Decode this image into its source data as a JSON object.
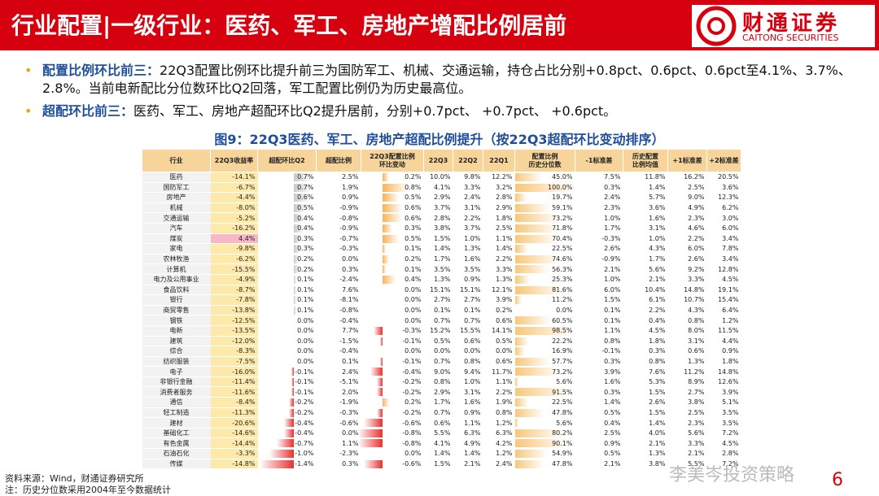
{
  "header": {
    "title": "行业配置|一级行业：医药、军工、房地产增配比例居前",
    "logo_cn": "财通证券",
    "logo_en": "CAITONG SECURITIES"
  },
  "bullets": [
    {
      "label": "配置比例环比前三：",
      "text": "22Q3配置比例环比提升前三为国防军工、机械、交通运输，持仓占比分别+0.8pct、0.6pct、0.6pct至4.1%、3.7%、2.8%。当前电新配比分位数环比Q2回落，军工配置比例仍为历史最高位。"
    },
    {
      "label": "超配环比前三：",
      "text": "医药、军工、房地产超配环比Q2提升居前，分别+0.7pct、 +0.7pct、 +0.6pct。"
    }
  ],
  "caption": "图9：22Q3医药、军工、房地产超配比例提升（按22Q3超配环比变动排序）",
  "table": {
    "columns": [
      "行业",
      "22Q3收益率",
      "超配环比Q2",
      "超配比例",
      "22Q3配置比例\n环比变动",
      "22Q3",
      "22Q2",
      "22Q1",
      "配置比例\n历史分位数",
      "-1标准差",
      "历史配置\n比例均值",
      "+1标准差",
      "+2标准差"
    ],
    "rows": [
      [
        "医药",
        "-14.1%",
        "0.7%",
        "2.5%",
        "0.2%",
        "10.0%",
        "9.8%",
        "12.2%",
        "45.0%",
        "7.5%",
        "11.8%",
        "16.2%",
        "20.5%"
      ],
      [
        "国防军工",
        "-6.7%",
        "0.7%",
        "1.9%",
        "0.8%",
        "4.1%",
        "3.3%",
        "3.2%",
        "100.0%",
        "0.3%",
        "1.4%",
        "2.5%",
        "3.6%"
      ],
      [
        "房地产",
        "-4.4%",
        "0.6%",
        "0.9%",
        "0.5%",
        "2.9%",
        "2.4%",
        "2.8%",
        "19.7%",
        "2.4%",
        "5.7%",
        "9.0%",
        "12.3%"
      ],
      [
        "机械",
        "-8.0%",
        "0.5%",
        "-0.9%",
        "0.6%",
        "3.7%",
        "3.1%",
        "2.9%",
        "59.1%",
        "2.3%",
        "3.6%",
        "4.9%",
        "6.2%"
      ],
      [
        "交通运输",
        "-5.2%",
        "0.4%",
        "-0.8%",
        "0.6%",
        "2.8%",
        "2.2%",
        "1.8%",
        "73.2%",
        "1.0%",
        "1.6%",
        "2.3%",
        "3.0%"
      ],
      [
        "汽车",
        "-16.2%",
        "0.4%",
        "-0.9%",
        "0.3%",
        "3.8%",
        "3.7%",
        "2.5%",
        "71.8%",
        "1.7%",
        "3.1%",
        "4.6%",
        "6.0%"
      ],
      [
        "煤炭",
        "4.4%",
        "0.3%",
        "-0.7%",
        "0.5%",
        "1.5%",
        "1.0%",
        "1.1%",
        "70.4%",
        "-0.3%",
        "1.0%",
        "2.2%",
        "3.4%"
      ],
      [
        "家电",
        "-9.8%",
        "0.3%",
        "-0.3%",
        "0.1%",
        "1.4%",
        "1.3%",
        "1.4%",
        "22.5%",
        "2.6%",
        "4.3%",
        "6.0%",
        "7.8%"
      ],
      [
        "农林牧渔",
        "-6.2%",
        "0.2%",
        "0.0%",
        "0.2%",
        "1.7%",
        "1.6%",
        "2.2%",
        "74.6%",
        "-0.9%",
        "1.7%",
        "2.6%",
        "3.4%"
      ],
      [
        "计算机",
        "-15.5%",
        "0.2%",
        "0.3%",
        "0.1%",
        "3.5%",
        "3.5%",
        "3.3%",
        "56.3%",
        "2.1%",
        "5.6%",
        "9.2%",
        "12.8%"
      ],
      [
        "电力及公用事业",
        "-4.9%",
        "0.1%",
        "-2.4%",
        "0.4%",
        "1.3%",
        "0.9%",
        "1.3%",
        "25.3%",
        "1.0%",
        "2.1%",
        "3.3%",
        "4.5%"
      ],
      [
        "食品饮料",
        "-8.7%",
        "0.1%",
        "7.6%",
        "0.0%",
        "15.1%",
        "15.1%",
        "12.1%",
        "81.6%",
        "6.0%",
        "10.4%",
        "14.8%",
        "19.1%"
      ],
      [
        "银行",
        "-7.8%",
        "0.1%",
        "-8.1%",
        "0.0%",
        "2.7%",
        "2.7%",
        "3.9%",
        "11.2%",
        "1.5%",
        "6.1%",
        "10.7%",
        "15.4%"
      ],
      [
        "商贸零售",
        "-13.8%",
        "0.1%",
        "-0.8%",
        "0.0%",
        "0.1%",
        "0.1%",
        "0.2%",
        "0.0%",
        "0.1%",
        "2.2%",
        "4.3%",
        "6.4%"
      ],
      [
        "钢铁",
        "-12.5%",
        "0.0%",
        "-0.4%",
        "0.0%",
        "0.7%",
        "0.7%",
        "0.6%",
        "60.5%",
        "0.1%",
        "0.4%",
        "0.8%",
        "1.2%"
      ],
      [
        "电新",
        "-13.5%",
        "0.0%",
        "7.7%",
        "-0.3%",
        "15.2%",
        "15.5%",
        "14.1%",
        "98.5%",
        "1.1%",
        "4.5%",
        "8.0%",
        "11.5%"
      ],
      [
        "建筑",
        "-12.0%",
        "0.0%",
        "-1.5%",
        "-0.1%",
        "0.5%",
        "0.6%",
        "0.5%",
        "22.2%",
        "0.8%",
        "1.8%",
        "3.1%",
        "4.4%"
      ],
      [
        "综合",
        "-8.3%",
        "0.0%",
        "-0.4%",
        "0.0%",
        "0.0%",
        "0.0%",
        "0.0%",
        "16.9%",
        "-0.1%",
        "0.3%",
        "0.6%",
        "0.9%"
      ],
      [
        "纺织服装",
        "-7.5%",
        "0.0%",
        "0.1%",
        "-0.1%",
        "0.7%",
        "0.8%",
        "0.6%",
        "57.7%",
        "0.3%",
        "0.8%",
        "1.3%",
        "1.8%"
      ],
      [
        "电子",
        "-16.0%",
        "-0.1%",
        "2.4%",
        "-0.4%",
        "9.0%",
        "9.4%",
        "11.7%",
        "73.2%",
        "3.9%",
        "7.6%",
        "11.2%",
        "14.8%"
      ],
      [
        "非银行金融",
        "-11.4%",
        "-0.1%",
        "-5.1%",
        "-0.2%",
        "0.8%",
        "1.0%",
        "1.1%",
        "5.6%",
        "1.6%",
        "5.3%",
        "8.9%",
        "12.6%"
      ],
      [
        "消费者服务",
        "-11.6%",
        "-0.1%",
        "2.0%",
        "-0.2%",
        "2.9%",
        "3.1%",
        "2.2%",
        "91.5%",
        "0.3%",
        "1.5%",
        "2.7%",
        "3.9%"
      ],
      [
        "通信",
        "-8.4%",
        "-0.2%",
        "-1.9%",
        "0.2%",
        "1.7%",
        "1.6%",
        "1.9%",
        "22.5%",
        "1.4%",
        "2.6%",
        "3.8%",
        "5.1%"
      ],
      [
        "轻工制造",
        "-11.3%",
        "-0.2%",
        "-0.3%",
        "-0.2%",
        "0.7%",
        "0.9%",
        "0.8%",
        "47.8%",
        "0.5%",
        "1.5%",
        "2.5%",
        "3.5%"
      ],
      [
        "建材",
        "-20.6%",
        "-0.4%",
        "-0.6%",
        "-0.6%",
        "0.6%",
        "1.1%",
        "1.2%",
        "5.6%",
        "0.4%",
        "1.4%",
        "2.3%",
        "3.5%"
      ],
      [
        "基础化工",
        "-14.6%",
        "-0.4%",
        "0.0%",
        "-0.8%",
        "5.5%",
        "6.3%",
        "6.3%",
        "80.2%",
        "2.5%",
        "4.0%",
        "5.6%",
        "7.2%"
      ],
      [
        "有色金属",
        "-14.4%",
        "-0.7%",
        "1.1%",
        "-0.8%",
        "4.1%",
        "4.9%",
        "4.2%",
        "90.1%",
        "0.9%",
        "2.1%",
        "3.3%",
        "4.5%"
      ],
      [
        "石油石化",
        "-3.3%",
        "-1.0%",
        "-2.3%",
        "0.0%",
        "1.4%",
        "1.4%",
        "1.2%",
        "54.9%",
        "0.5%",
        "1.3%",
        "2.1%",
        "2.8%"
      ],
      [
        "传媒",
        "-14.8%",
        "-1.4%",
        "0.3%",
        "-0.6%",
        "1.5%",
        "2.1%",
        "2.4%",
        "47.8%",
        "2.1%",
        "3.8%",
        "5.5%",
        "7.2%"
      ]
    ]
  },
  "footnotes": [
    "资料来源：Wind，财通证券研究所",
    "注：历史分位数采用2004年至今数据统计"
  ],
  "page_number": "6",
  "watermark": "李美岑投资策略"
}
